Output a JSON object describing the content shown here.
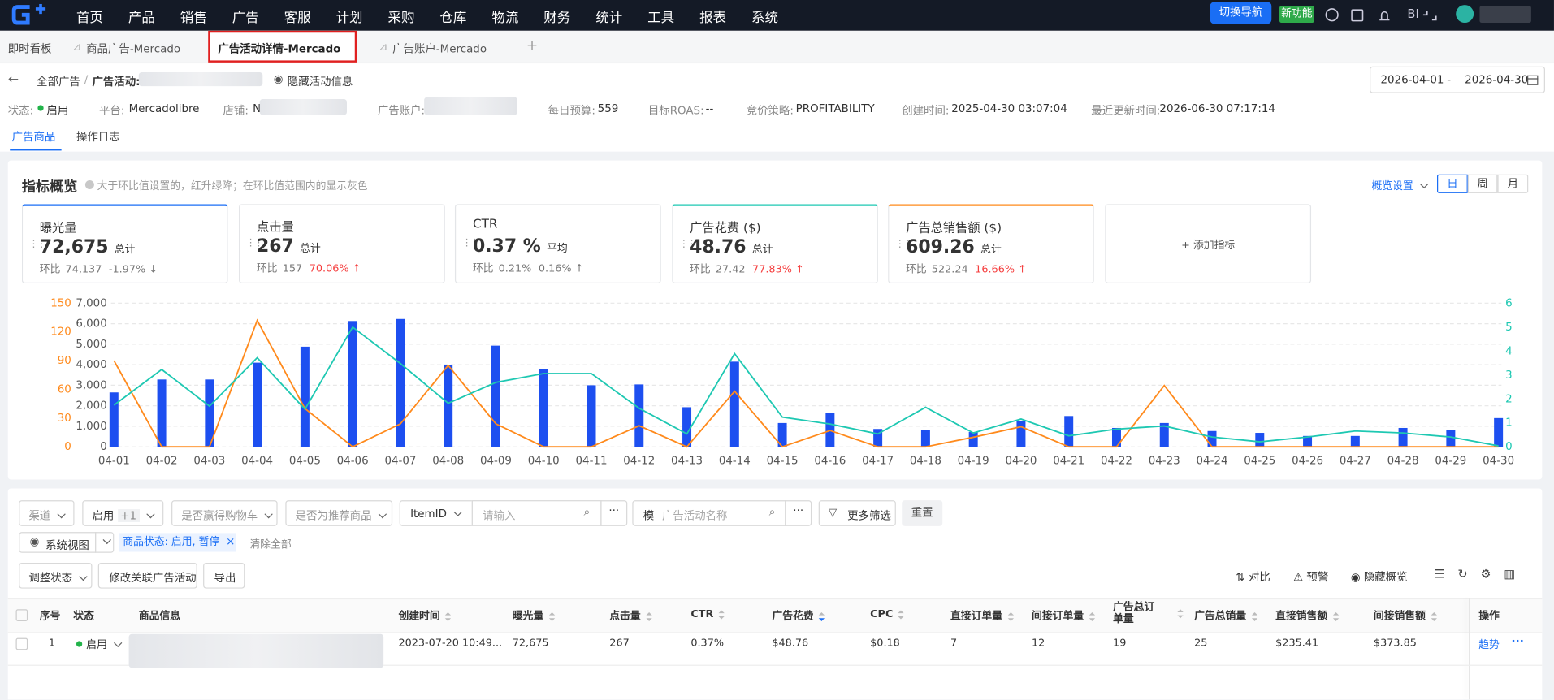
{
  "nav": {
    "menu": [
      "首页",
      "产品",
      "销售",
      "广告",
      "客服",
      "计划",
      "采购",
      "仓库",
      "物流",
      "财务",
      "统计",
      "工具",
      "报表",
      "系统"
    ],
    "switch_nav": "切换导航",
    "new_feature": "新功能",
    "bi": "BI"
  },
  "tabs": [
    "即时看板",
    "商品广告-Mercado",
    "广告活动详情-Mercado",
    "广告账户-Mercado"
  ],
  "breadcrumb": {
    "all": "全部广告",
    "sep": "/",
    "campaign_label": "广告活动:",
    "hide": "隐藏活动信息"
  },
  "date_range": {
    "start": "2026-04-01",
    "sep": "-",
    "end": "2026-04-30"
  },
  "info": {
    "status_label": "状态:",
    "status": "启用",
    "platform_label": "平台:",
    "platform": "Mercadolibre",
    "store_label": "店铺:",
    "store": "N",
    "account_label": "广告账户:",
    "budget_label": "每日预算:",
    "budget": "559",
    "roas_label": "目标ROAS:",
    "roas": "--",
    "strategy_label": "竞价策略:",
    "strategy": "PROFITABILITY",
    "created_label": "创建时间:",
    "created": "2025-04-30 03:07:04",
    "updated_label": "最近更新时间:",
    "updated": "2026-06-30 07:17:14"
  },
  "sub_tabs": [
    "广告商品",
    "操作日志"
  ],
  "overview": {
    "title": "指标概览",
    "hint": "大于环比值设置的，红升绿降；在环比值范围内的显示灰色",
    "settings": "概览设置",
    "periods": [
      "日",
      "周",
      "月"
    ],
    "add": "+ 添加指标"
  },
  "cards": [
    {
      "name": "曝光量",
      "value": "72,675",
      "unit": "总计",
      "cmp_label": "环比",
      "cmp_value": "74,137",
      "change": "-1.97%"
    },
    {
      "name": "点击量",
      "value": "267",
      "unit": "总计",
      "cmp_label": "环比",
      "cmp_value": "157",
      "change": "70.06%"
    },
    {
      "name": "CTR",
      "value": "0.37 %",
      "unit": "平均",
      "cmp_label": "环比",
      "cmp_value": "0.21%",
      "change": "0.16%"
    },
    {
      "name": "广告花费 ($)",
      "value": "48.76",
      "unit": "总计",
      "cmp_label": "环比",
      "cmp_value": "27.42",
      "change": "77.83%"
    },
    {
      "name": "广告总销售额 ($)",
      "value": "609.26",
      "unit": "总计",
      "cmp_label": "环比",
      "cmp_value": "522.24",
      "change": "16.66%"
    }
  ],
  "chart": {
    "type": "bar",
    "grid": true,
    "categories": [
      "04-01",
      "04-02",
      "04-03",
      "04-04",
      "04-05",
      "04-06",
      "04-07",
      "04-08",
      "04-09",
      "04-10",
      "04-11",
      "04-12",
      "04-13",
      "04-14",
      "04-15",
      "04-16",
      "04-17",
      "04-18",
      "04-19",
      "04-20",
      "04-21",
      "04-22",
      "04-23",
      "04-24",
      "04-25",
      "04-26",
      "04-27",
      "04-28",
      "04-29",
      "04-30"
    ],
    "series": [
      {
        "type": "bar",
        "axis": "y",
        "color": "#1d4ff0",
        "values": [
          2650,
          3280,
          3280,
          4100,
          4880,
          6130,
          6230,
          4000,
          4930,
          3770,
          3000,
          3040,
          1930,
          4150,
          1160,
          1640,
          870,
          820,
          720,
          1260,
          1500,
          920,
          1160,
          770,
          680,
          530,
          530,
          920,
          820,
          1400
        ]
      },
      {
        "type": "line",
        "axis": "y3",
        "color": "#ff8a1c",
        "values": [
          90,
          0,
          0,
          132,
          40,
          0,
          24,
          85,
          24,
          0,
          0,
          22,
          0,
          58,
          0,
          17,
          0,
          0,
          10,
          21,
          0,
          0,
          64,
          0,
          0,
          0,
          0,
          0,
          0,
          0
        ]
      },
      {
        "type": "line",
        "axis": "y2",
        "color": "#1ec8b2",
        "values": [
          1.74,
          3.23,
          1.7,
          3.72,
          1.57,
          5.0,
          3.48,
          1.82,
          2.69,
          3.06,
          3.06,
          1.61,
          0.54,
          3.89,
          1.24,
          0.95,
          0.54,
          1.65,
          0.58,
          1.16,
          0.46,
          0.74,
          0.87,
          0.41,
          0.21,
          0.41,
          0.66,
          0.58,
          0.41,
          0.04
        ]
      }
    ],
    "ylim": [
      0,
      7000
    ],
    "yticks": [
      0,
      {
        "value": 1000,
        "label": "1,000"
      },
      {
        "value": 2000,
        "label": "2,000"
      },
      {
        "value": 3000,
        "label": "3,000"
      },
      {
        "value": 4000,
        "label": "4,000"
      },
      {
        "value": 5000,
        "label": "5,000"
      },
      {
        "value": 6000,
        "label": "6,000"
      },
      {
        "value": 7000,
        "label": "7,000"
      }
    ],
    "y2lim": [
      0,
      6
    ],
    "y2ticks": [
      0,
      1,
      2,
      3,
      4,
      5,
      6
    ],
    "y3lim": [
      0,
      150
    ],
    "y3ticks": [
      0,
      30,
      60,
      90,
      120,
      150
    ]
  },
  "filters": {
    "channel": "渠道",
    "status": "启用",
    "status_count": "+1",
    "cart": "是否赢得购物车",
    "recommend": "是否为推荐商品",
    "itemid": "ItemID",
    "input_placeholder": "请输入",
    "fuzzy": "模",
    "campaign_placeholder": "广告活动名称",
    "more": "更多筛选",
    "reset": "重置",
    "view": "系统视图",
    "tag": "商品状态: 启用, 暂停",
    "clear": "清除全部"
  },
  "actions": {
    "adjust": "调整状态",
    "modify": "修改关联广告活动",
    "export": "导出",
    "compare": "对比",
    "alert": "预警",
    "hide_overview": "隐藏概览"
  },
  "table": {
    "columns": [
      "序号",
      "状态",
      "商品信息",
      "创建时间",
      "曝光量",
      "点击量",
      "CTR",
      "广告花费",
      "CPC",
      "直接订单量",
      "间接订单量",
      "广告总订单量",
      "广告总销量",
      "直接销售额",
      "间接销售额",
      "操作"
    ],
    "rows": [
      {
        "index": "1",
        "status": "启用",
        "created": "2023-07-20 10:49...",
        "impressions": "72,675",
        "clicks": "267",
        "ctr": "0.37%",
        "spend": "$48.76",
        "cpc": "$0.18",
        "direct_orders": "7",
        "indirect_orders": "12",
        "total_orders": "19",
        "total_units": "25",
        "direct_sales": "$235.41",
        "indirect_sales": "$373.85",
        "action": "趋势"
      }
    ]
  }
}
